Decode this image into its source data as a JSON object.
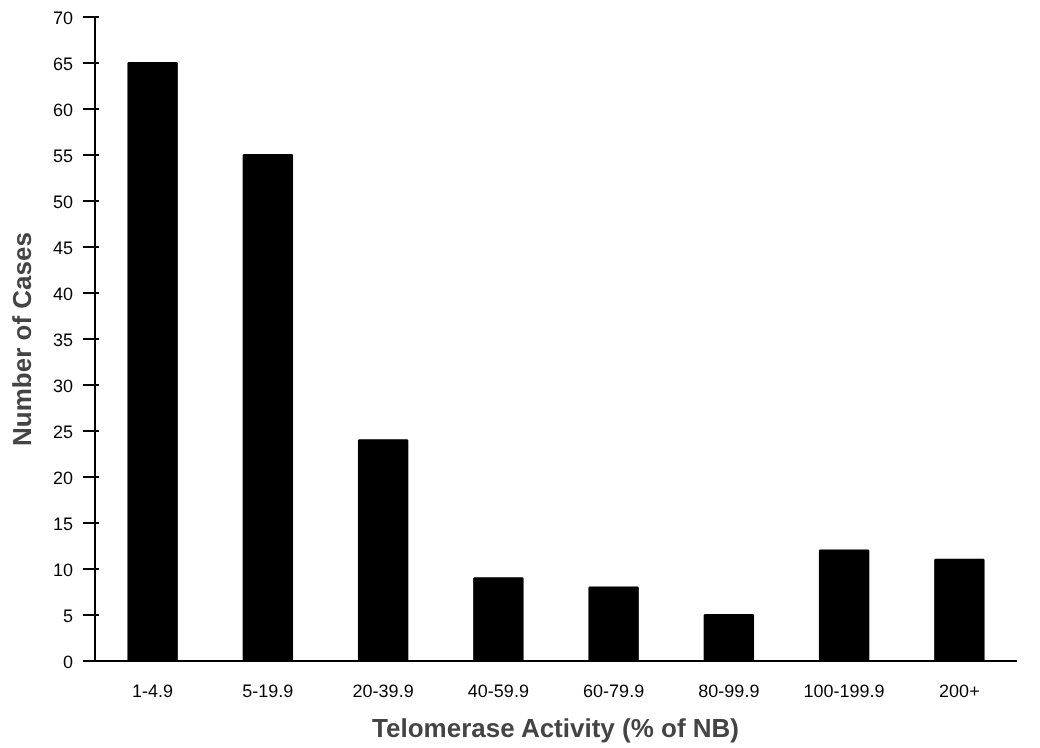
{
  "chart_data": {
    "type": "bar",
    "xlabel": "Telomerase Activity (% of NB)",
    "ylabel": "Number of Cases",
    "categories": [
      "1-4.9",
      "5-19.9",
      "20-39.9",
      "40-59.9",
      "60-79.9",
      "80-99.9",
      "100-199.9",
      "200+"
    ],
    "values": [
      65,
      55,
      24,
      9,
      8,
      5,
      12,
      11
    ],
    "color": "#000000",
    "ylim": [
      0,
      70
    ],
    "yticks": [
      0,
      5,
      10,
      15,
      20,
      25,
      30,
      35,
      40,
      45,
      50,
      55,
      60,
      65,
      70
    ],
    "grid": false
  }
}
